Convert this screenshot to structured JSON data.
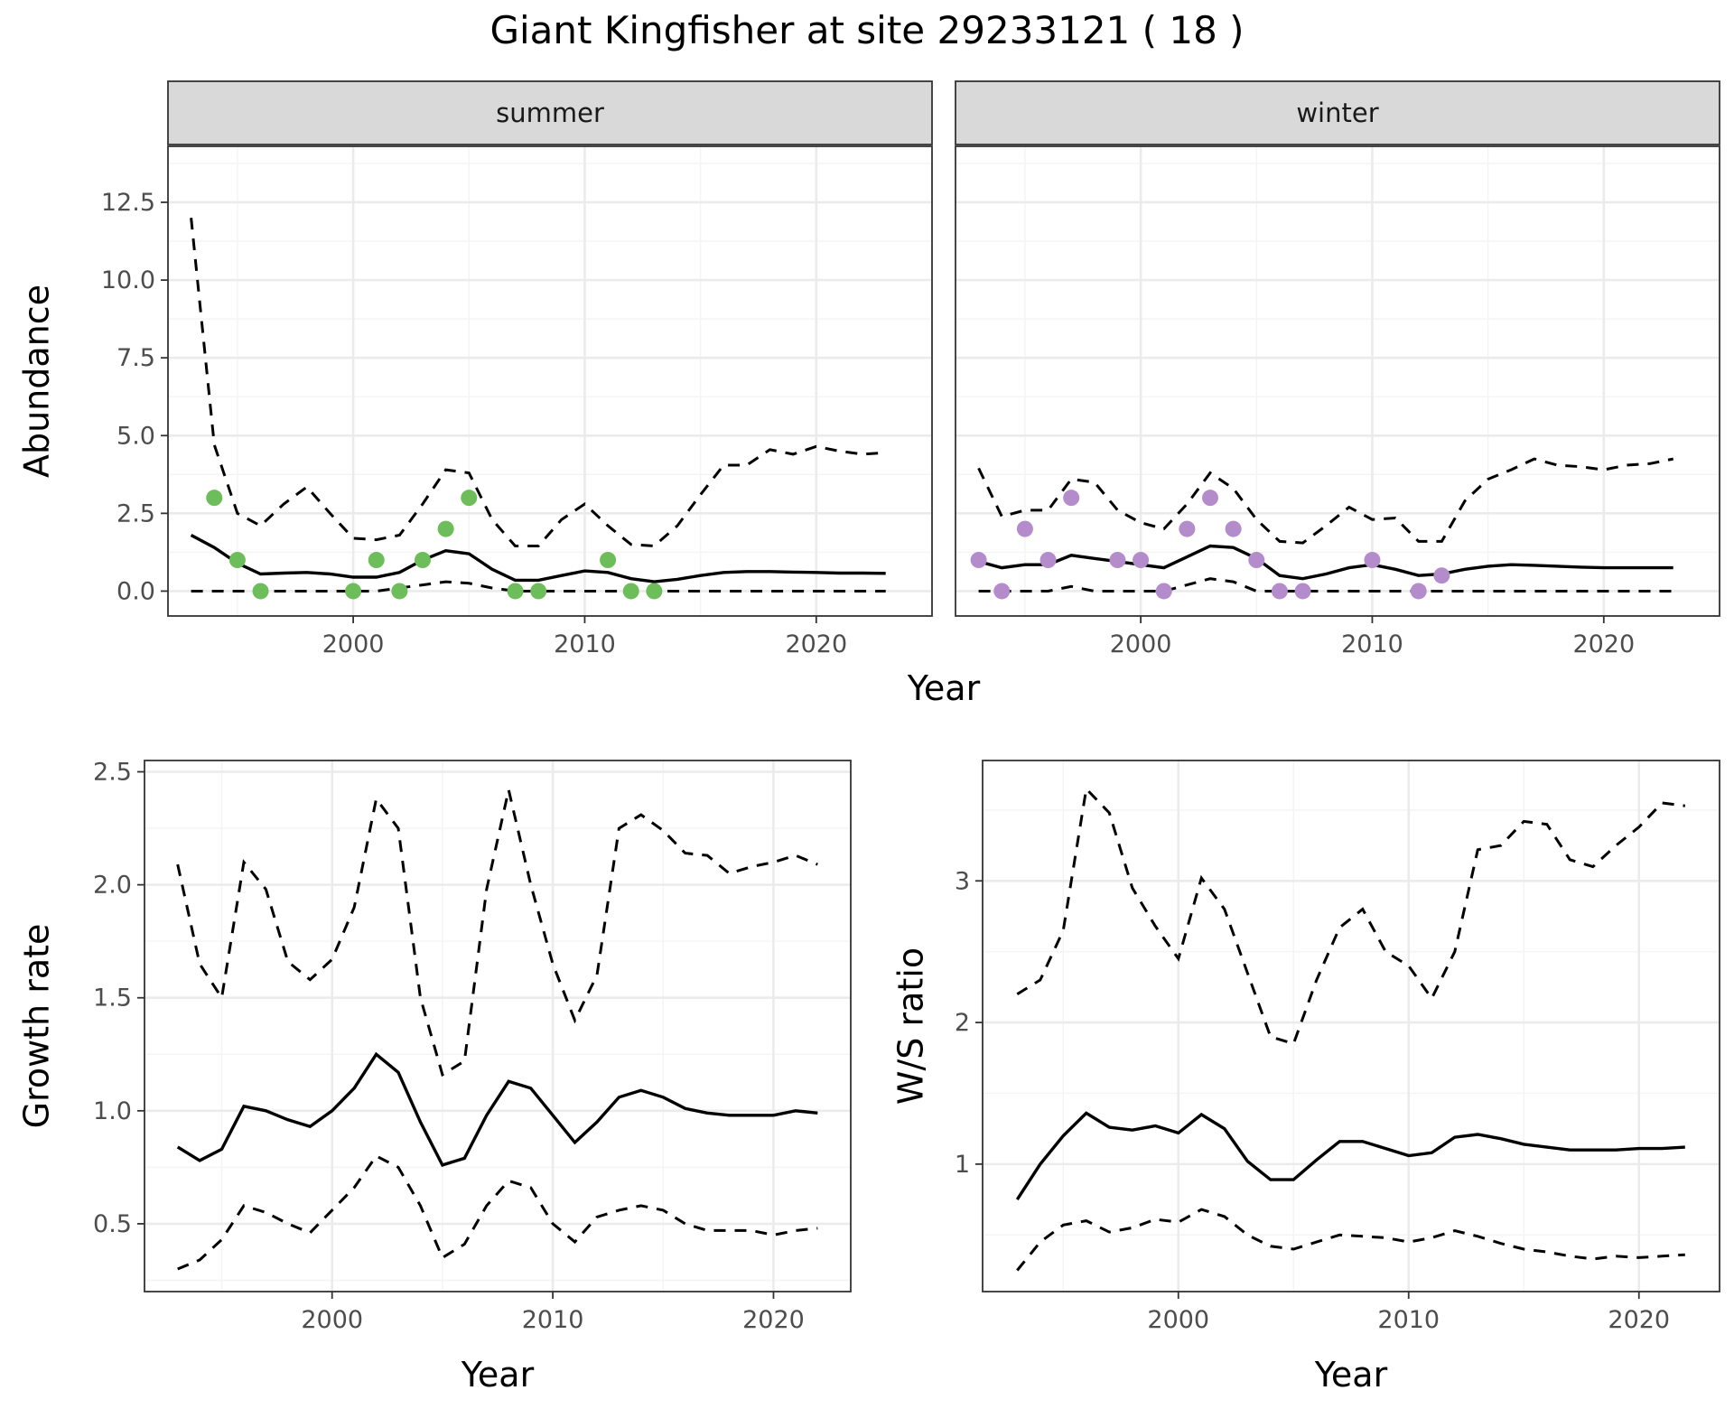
{
  "figure": {
    "title": "Giant Kingfisher at site 29233121 ( 18 )",
    "colors": {
      "summer_points": "#6dbd5a",
      "winter_points": "#b48ccc",
      "lines": "#000000"
    }
  },
  "chart_data": [
    {
      "id": "abundance",
      "type": "line",
      "ylabel": "Abundance",
      "xlabel": "Year",
      "xlim": [
        1992,
        2025
      ],
      "ylim": [
        -0.8,
        14.3
      ],
      "xticks": [
        2000,
        2010,
        2020
      ],
      "yticks": [
        0,
        2.5,
        5,
        7.5,
        10,
        12.5
      ],
      "ytick_labels": [
        "0.0",
        "2.5",
        "5.0",
        "7.5",
        "10.0",
        "12.5"
      ],
      "grid": true,
      "facets": [
        {
          "strip": "summer",
          "points": {
            "x": [
              1994,
              1995,
              1996,
              2000,
              2001,
              2002,
              2003,
              2004,
              2005,
              2007,
              2008,
              2011,
              2012,
              2013
            ],
            "y": [
              3,
              1,
              0,
              0,
              1,
              0,
              1,
              2,
              3,
              0,
              0,
              1,
              0,
              0
            ]
          },
          "x": [
            1993,
            1994,
            1995,
            1996,
            1997,
            1998,
            1999,
            2000,
            2001,
            2002,
            2003,
            2004,
            2005,
            2006,
            2007,
            2008,
            2009,
            2010,
            2011,
            2012,
            2013,
            2014,
            2015,
            2016,
            2017,
            2018,
            2019,
            2020,
            2021,
            2022,
            2023
          ],
          "series": [
            {
              "role": "mean",
              "values": [
                1.8,
                1.4,
                0.9,
                0.55,
                0.58,
                0.6,
                0.55,
                0.45,
                0.45,
                0.6,
                1.0,
                1.3,
                1.2,
                0.7,
                0.35,
                0.35,
                0.5,
                0.65,
                0.6,
                0.4,
                0.3,
                0.38,
                0.5,
                0.6,
                0.63,
                0.63,
                0.61,
                0.6,
                0.58,
                0.58,
                0.57
              ]
            },
            {
              "role": "upper",
              "values": [
                12.0,
                4.7,
                2.5,
                2.1,
                2.8,
                3.35,
                2.5,
                1.7,
                1.65,
                1.8,
                2.8,
                3.9,
                3.8,
                2.3,
                1.45,
                1.45,
                2.3,
                2.8,
                2.1,
                1.5,
                1.45,
                2.1,
                3.1,
                4.05,
                4.05,
                4.55,
                4.4,
                4.65,
                4.5,
                4.4,
                4.45
              ]
            },
            {
              "role": "lower",
              "values": [
                0,
                0,
                0,
                0,
                0,
                0,
                0,
                0,
                0,
                0.1,
                0.2,
                0.3,
                0.25,
                0.1,
                0,
                0,
                0,
                0,
                0,
                0,
                0,
                0,
                0,
                0,
                0,
                0,
                0,
                0,
                0,
                0,
                0
              ]
            }
          ]
        },
        {
          "strip": "winter",
          "points": {
            "x": [
              1993,
              1994,
              1995,
              1996,
              1997,
              1999,
              2000,
              2001,
              2002,
              2003,
              2004,
              2005,
              2006,
              2007,
              2010,
              2012,
              2013
            ],
            "y": [
              1,
              0,
              2,
              1,
              3,
              1,
              1,
              0,
              2,
              3,
              2,
              1,
              0,
              0,
              1,
              0,
              0.5
            ]
          },
          "x": [
            1993,
            1994,
            1995,
            1996,
            1997,
            1998,
            1999,
            2000,
            2001,
            2002,
            2003,
            2004,
            2005,
            2006,
            2007,
            2008,
            2009,
            2010,
            2011,
            2012,
            2013,
            2014,
            2015,
            2016,
            2017,
            2018,
            2019,
            2020,
            2021,
            2022,
            2023
          ],
          "series": [
            {
              "role": "mean",
              "values": [
                0.95,
                0.75,
                0.85,
                0.85,
                1.15,
                1.05,
                0.95,
                0.85,
                0.75,
                1.1,
                1.45,
                1.4,
                1.05,
                0.5,
                0.4,
                0.55,
                0.75,
                0.85,
                0.7,
                0.5,
                0.55,
                0.7,
                0.8,
                0.85,
                0.83,
                0.8,
                0.77,
                0.75,
                0.75,
                0.75,
                0.75
              ]
            },
            {
              "role": "upper",
              "values": [
                3.95,
                2.4,
                2.6,
                2.6,
                3.6,
                3.5,
                2.6,
                2.2,
                2.0,
                2.8,
                3.8,
                3.3,
                2.3,
                1.6,
                1.55,
                2.1,
                2.7,
                2.3,
                2.35,
                1.6,
                1.6,
                2.9,
                3.6,
                3.9,
                4.25,
                4.05,
                4.0,
                3.9,
                4.05,
                4.1,
                4.25
              ]
            },
            {
              "role": "lower",
              "values": [
                0,
                0,
                0,
                0,
                0.15,
                0,
                0,
                0,
                0,
                0.2,
                0.4,
                0.3,
                0,
                0,
                0,
                0,
                0,
                0,
                0,
                0,
                0,
                0,
                0,
                0,
                0,
                0,
                0,
                0,
                0,
                0,
                0
              ]
            }
          ]
        }
      ]
    },
    {
      "id": "growth",
      "type": "line",
      "ylabel": "Growth rate",
      "xlabel": "Year",
      "xlim": [
        1991.5,
        2023.5
      ],
      "ylim": [
        0.2,
        2.55
      ],
      "xticks": [
        2000,
        2010,
        2020
      ],
      "yticks": [
        0.5,
        1.0,
        1.5,
        2.0,
        2.5
      ],
      "ytick_labels": [
        "0.5",
        "1.0",
        "1.5",
        "2.0",
        "2.5"
      ],
      "grid": true,
      "x": [
        1993,
        1994,
        1995,
        1996,
        1997,
        1998,
        1999,
        2000,
        2001,
        2002,
        2003,
        2004,
        2005,
        2006,
        2007,
        2008,
        2009,
        2010,
        2011,
        2012,
        2013,
        2014,
        2015,
        2016,
        2017,
        2018,
        2019,
        2020,
        2021,
        2022
      ],
      "series": [
        {
          "role": "mean",
          "values": [
            0.84,
            0.78,
            0.83,
            1.02,
            1.0,
            0.96,
            0.93,
            1.0,
            1.1,
            1.25,
            1.17,
            0.95,
            0.76,
            0.79,
            0.98,
            1.13,
            1.1,
            0.98,
            0.86,
            0.95,
            1.06,
            1.09,
            1.06,
            1.01,
            0.99,
            0.98,
            0.98,
            0.98,
            1.0,
            0.99
          ]
        },
        {
          "role": "upper",
          "values": [
            2.09,
            1.65,
            1.5,
            2.1,
            1.98,
            1.66,
            1.58,
            1.67,
            1.9,
            2.38,
            2.25,
            1.5,
            1.16,
            1.22,
            1.98,
            2.42,
            2.0,
            1.65,
            1.4,
            1.6,
            2.25,
            2.31,
            2.24,
            2.14,
            2.13,
            2.05,
            2.08,
            2.1,
            2.13,
            2.09
          ]
        },
        {
          "role": "lower",
          "values": [
            0.3,
            0.34,
            0.43,
            0.58,
            0.55,
            0.5,
            0.46,
            0.56,
            0.66,
            0.8,
            0.75,
            0.58,
            0.35,
            0.41,
            0.58,
            0.69,
            0.66,
            0.5,
            0.42,
            0.53,
            0.56,
            0.58,
            0.56,
            0.5,
            0.47,
            0.47,
            0.47,
            0.45,
            0.47,
            0.48
          ]
        }
      ]
    },
    {
      "id": "ratio",
      "type": "line",
      "ylabel": "W/S ratio",
      "xlabel": "Year",
      "xlim": [
        1991.5,
        2023.5
      ],
      "ylim": [
        0.1,
        3.85
      ],
      "xticks": [
        2000,
        2010,
        2020
      ],
      "yticks": [
        1,
        2,
        3
      ],
      "ytick_labels": [
        "1",
        "2",
        "3"
      ],
      "grid": true,
      "x": [
        1993,
        1994,
        1995,
        1996,
        1997,
        1998,
        1999,
        2000,
        2001,
        2002,
        2003,
        2004,
        2005,
        2006,
        2007,
        2008,
        2009,
        2010,
        2011,
        2012,
        2013,
        2014,
        2015,
        2016,
        2017,
        2018,
        2019,
        2020,
        2021,
        2022
      ],
      "series": [
        {
          "role": "mean",
          "values": [
            0.75,
            1.0,
            1.2,
            1.36,
            1.26,
            1.24,
            1.27,
            1.22,
            1.35,
            1.25,
            1.02,
            0.89,
            0.89,
            1.03,
            1.16,
            1.16,
            1.11,
            1.06,
            1.08,
            1.19,
            1.21,
            1.18,
            1.14,
            1.12,
            1.1,
            1.1,
            1.1,
            1.11,
            1.11,
            1.12
          ]
        },
        {
          "role": "upper",
          "values": [
            2.2,
            2.3,
            2.65,
            3.65,
            3.48,
            2.95,
            2.68,
            2.45,
            3.02,
            2.8,
            2.35,
            1.9,
            1.85,
            2.3,
            2.67,
            2.8,
            2.5,
            2.4,
            2.17,
            2.5,
            3.22,
            3.25,
            3.42,
            3.4,
            3.15,
            3.1,
            3.25,
            3.38,
            3.55,
            3.53
          ]
        },
        {
          "role": "lower",
          "values": [
            0.25,
            0.45,
            0.57,
            0.6,
            0.52,
            0.55,
            0.61,
            0.59,
            0.68,
            0.63,
            0.5,
            0.42,
            0.4,
            0.45,
            0.5,
            0.49,
            0.48,
            0.45,
            0.48,
            0.53,
            0.49,
            0.44,
            0.4,
            0.38,
            0.35,
            0.33,
            0.35,
            0.34,
            0.35,
            0.36
          ]
        }
      ]
    }
  ]
}
